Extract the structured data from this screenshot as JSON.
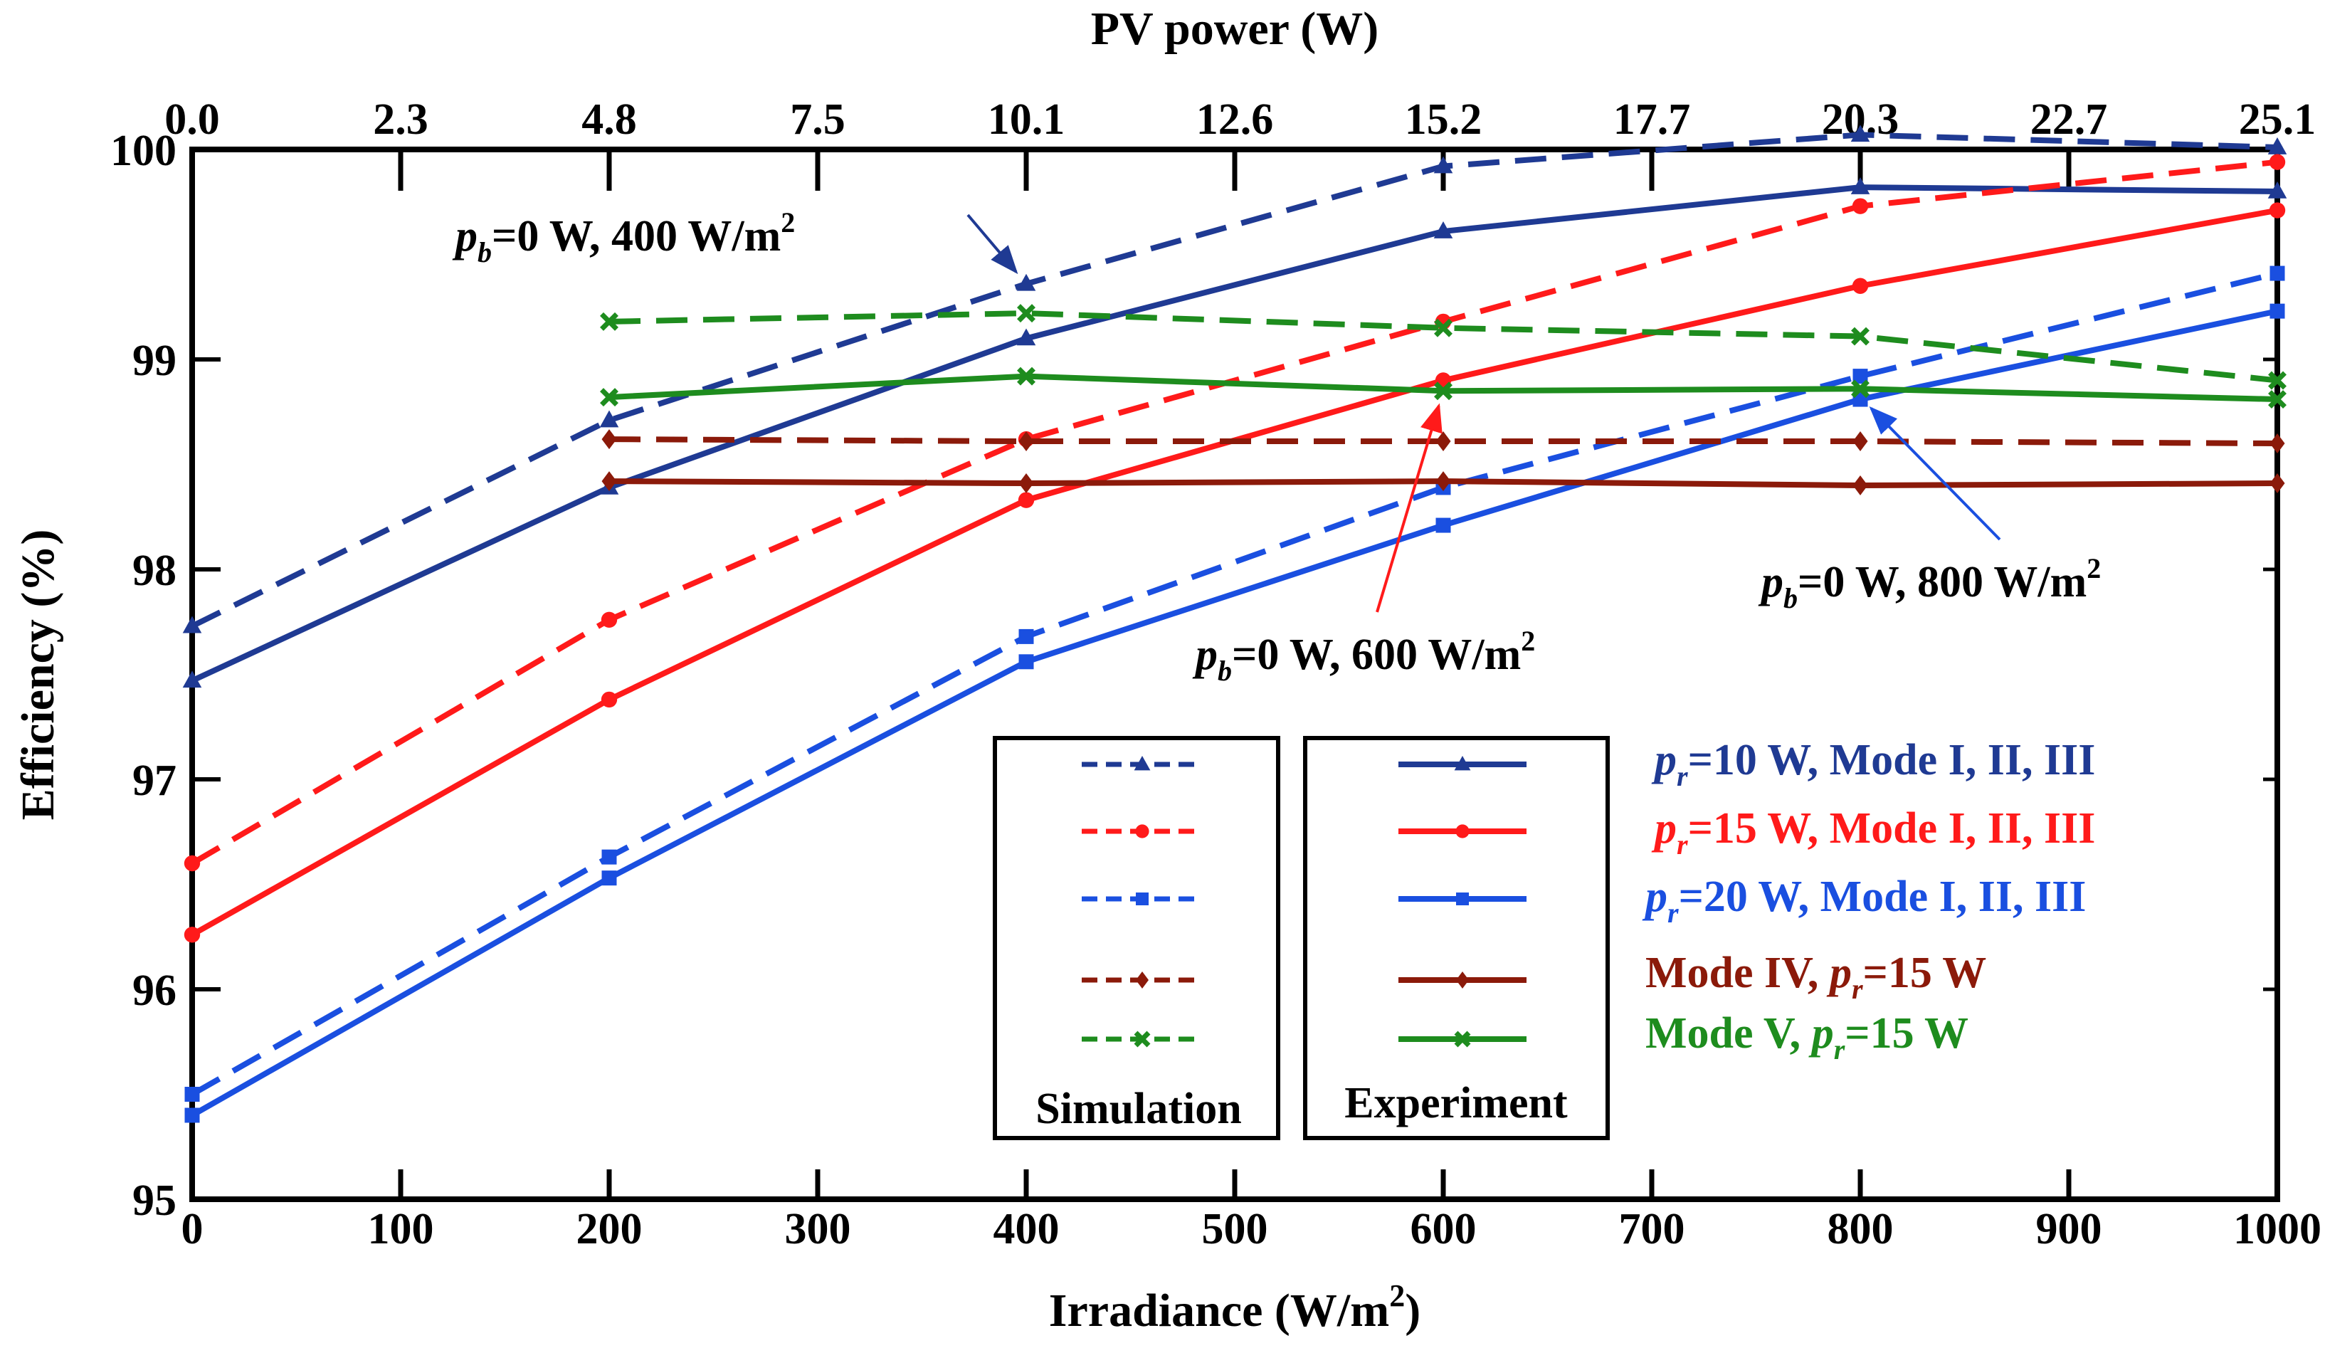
{
  "chart_data": {
    "type": "line",
    "title": "",
    "xlabel": "Irradiance (W/m²)",
    "x2label": "PV power (W)",
    "ylabel": "Efficiency (%)",
    "xlim": [
      0,
      1000
    ],
    "ylim": [
      95,
      100
    ],
    "x_ticks": [
      "0",
      "100",
      "200",
      "300",
      "400",
      "500",
      "600",
      "700",
      "800",
      "900",
      "1000"
    ],
    "x2_ticks": [
      "0.0",
      "2.3",
      "4.8",
      "7.5",
      "10.1",
      "12.6",
      "15.2",
      "17.7",
      "20.3",
      "22.7",
      "25.1"
    ],
    "y_ticks": [
      "95",
      "96",
      "97",
      "98",
      "99",
      "100"
    ],
    "grid": false,
    "series": [
      {
        "group": "Simulation",
        "style": "dashed",
        "marker": "triangle",
        "color": "#1F3A93",
        "x": [
          0,
          200,
          400,
          600,
          800,
          1000
        ],
        "values": [
          97.73,
          98.71,
          99.36,
          99.92,
          100.07,
          100.01
        ]
      },
      {
        "group": "Experiment",
        "style": "solid",
        "marker": "triangle",
        "color": "#1F3A93",
        "x": [
          0,
          200,
          400,
          600,
          800,
          1000
        ],
        "values": [
          97.47,
          98.39,
          99.1,
          99.61,
          99.82,
          99.8
        ]
      },
      {
        "group": "Simulation",
        "style": "dashed",
        "marker": "circle",
        "color": "#FF1A1A",
        "x": [
          0,
          200,
          400,
          600,
          800,
          1000
        ],
        "values": [
          96.6,
          97.76,
          98.62,
          99.18,
          99.73,
          99.94
        ]
      },
      {
        "group": "Experiment",
        "style": "solid",
        "marker": "circle",
        "color": "#FF1A1A",
        "x": [
          0,
          200,
          400,
          600,
          800,
          1000
        ],
        "values": [
          96.26,
          97.38,
          98.33,
          98.9,
          99.35,
          99.71
        ]
      },
      {
        "group": "Simulation",
        "style": "dashed",
        "marker": "square",
        "color": "#1A4FE0",
        "x": [
          0,
          200,
          400,
          600,
          800,
          1000
        ],
        "values": [
          95.5,
          96.63,
          97.68,
          98.39,
          98.92,
          99.41
        ]
      },
      {
        "group": "Experiment",
        "style": "solid",
        "marker": "square",
        "color": "#1A4FE0",
        "x": [
          0,
          200,
          400,
          600,
          800,
          1000
        ],
        "values": [
          95.4,
          96.53,
          97.56,
          98.21,
          98.81,
          99.23
        ]
      },
      {
        "group": "Simulation",
        "style": "dashed",
        "marker": "diamond",
        "color": "#8B1A0A",
        "x": [
          200,
          400,
          600,
          800,
          1000
        ],
        "values": [
          98.62,
          98.61,
          98.61,
          98.61,
          98.6
        ]
      },
      {
        "group": "Experiment",
        "style": "solid",
        "marker": "diamond",
        "color": "#8B1A0A",
        "x": [
          200,
          400,
          600,
          800,
          1000
        ],
        "values": [
          98.42,
          98.41,
          98.42,
          98.4,
          98.41
        ]
      },
      {
        "group": "Simulation",
        "style": "dashed",
        "marker": "x",
        "color": "#1E8C1E",
        "x": [
          200,
          400,
          600,
          800,
          1000
        ],
        "values": [
          99.18,
          99.22,
          99.15,
          99.11,
          98.9
        ]
      },
      {
        "group": "Experiment",
        "style": "solid",
        "marker": "x",
        "color": "#1E8C1E",
        "x": [
          200,
          400,
          600,
          800,
          1000
        ],
        "values": [
          98.82,
          98.92,
          98.85,
          98.86,
          98.81
        ]
      }
    ],
    "legend": {
      "box_labels": [
        "Simulation",
        "Experiment"
      ],
      "entries": [
        {
          "color": "#1F3A93",
          "parts": [
            [
              "i",
              "p"
            ],
            [
              "sub",
              "r"
            ],
            [
              "t",
              "=10 W, Mode I, II, III"
            ]
          ]
        },
        {
          "color": "#FF1A1A",
          "parts": [
            [
              "i",
              "p"
            ],
            [
              "sub",
              "r"
            ],
            [
              "t",
              "=15 W, Mode I, II, III"
            ]
          ]
        },
        {
          "color": "#1A4FE0",
          "parts": [
            [
              "i",
              "p"
            ],
            [
              "sub",
              "r"
            ],
            [
              "t",
              "=20 W, Mode I, II, III"
            ]
          ]
        },
        {
          "color": "#8B1A0A",
          "parts": [
            [
              "t",
              "Mode IV, "
            ],
            [
              "i",
              "p"
            ],
            [
              "sub",
              "r"
            ],
            [
              "t",
              "=15 W"
            ]
          ]
        },
        {
          "color": "#1E8C1E",
          "parts": [
            [
              "t",
              "Mode V, "
            ],
            [
              "i",
              "p"
            ],
            [
              "sub",
              "r"
            ],
            [
              "t",
              "=15 W"
            ]
          ]
        }
      ]
    },
    "annotations": [
      {
        "color": "#000000",
        "arrow_color": "#1F3A93",
        "target": [
          400,
          99.36
        ],
        "parts": [
          [
            "i",
            "p"
          ],
          [
            "sub",
            "b"
          ],
          [
            "t",
            "=0 W, 400 W/m"
          ],
          [
            "sup",
            "2"
          ]
        ]
      },
      {
        "color": "#000000",
        "arrow_color": "#FF1A1A",
        "target": [
          600,
          98.85
        ],
        "parts": [
          [
            "i",
            "p"
          ],
          [
            "sub",
            "b"
          ],
          [
            "t",
            "=0 W, 600 W/m"
          ],
          [
            "sup",
            "2"
          ]
        ]
      },
      {
        "color": "#000000",
        "arrow_color": "#1A4FE0",
        "target": [
          800,
          98.82
        ],
        "parts": [
          [
            "i",
            "p"
          ],
          [
            "sub",
            "b"
          ],
          [
            "t",
            "=0 W, 800 W/m"
          ],
          [
            "sup",
            "2"
          ]
        ]
      }
    ]
  }
}
